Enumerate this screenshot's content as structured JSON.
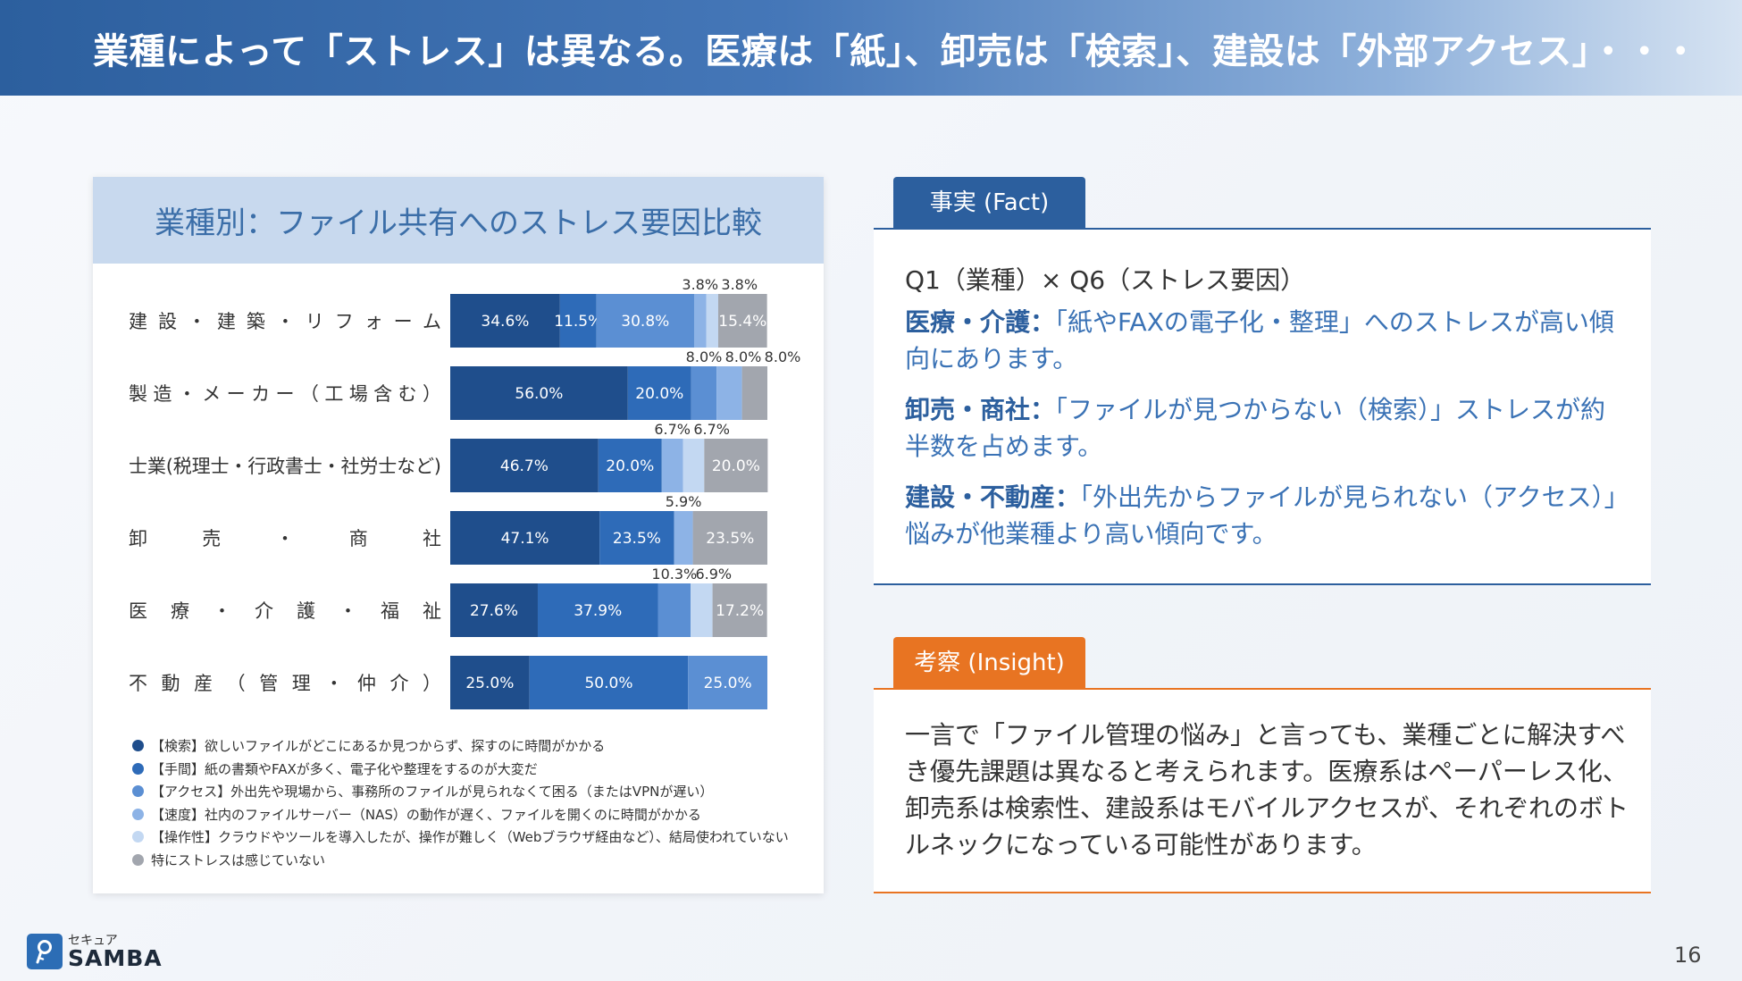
{
  "header": {
    "title": "業種によって「ストレス」は異なる。医療は「紙」、卸売は「検索」、建設は「外部アクセス」・・・"
  },
  "chart_card": {
    "title": "業種別：ファイル共有へのストレス要因比較"
  },
  "chart_data": {
    "type": "bar",
    "orientation": "horizontal",
    "stacked": true,
    "title": "業種別：ファイル共有へのストレス要因比較",
    "categories": [
      "建設・建築・リフォーム",
      "製造・メーカー（工場含む）",
      "士業(税理士・行政書士・社労士など)",
      "卸売・商社",
      "医療・介護・福祉",
      "不動産（管理・仲介）"
    ],
    "series": [
      {
        "name": "【検索】欲しいファイルがどこにあるか見つからず、探すのに時間がかかる",
        "color": "#1f4e8c",
        "values": [
          34.6,
          56.0,
          46.7,
          47.1,
          27.6,
          25.0
        ]
      },
      {
        "name": "【手間】紙の書類やFAXが多く、電子化や整理をするのが大変だ",
        "color": "#2e6bb8",
        "values": [
          11.5,
          20.0,
          20.0,
          23.5,
          37.9,
          50.0
        ]
      },
      {
        "name": "【アクセス】外出先や現場から、事務所のファイルが見られなくて困る（またはVPNが遅い）",
        "color": "#5b8fd3",
        "values": [
          30.8,
          8.0,
          0,
          0,
          10.3,
          25.0
        ]
      },
      {
        "name": "【速度】社内のファイルサーバー（NAS）の動作が遅く、ファイルを開くのに時間がかかる",
        "color": "#8db3e6",
        "values": [
          3.8,
          8.0,
          6.7,
          5.9,
          0,
          0
        ]
      },
      {
        "name": "【操作性】クラウドやツールを導入したが、操作が難しく（Webブラウザ経由など）、結局使われていない",
        "color": "#c3d8f2",
        "values": [
          3.8,
          0,
          6.7,
          0,
          6.9,
          0
        ]
      },
      {
        "name": "特にストレスは感じていない",
        "color": "#a2a6ae",
        "values": [
          15.4,
          8.0,
          20.0,
          23.5,
          17.2,
          0
        ]
      }
    ],
    "value_labels": [
      [
        "34.6%",
        "11.5%",
        "30.8%",
        "3.8%",
        "3.8%",
        "15.4%"
      ],
      [
        "56.0%",
        "20.0%",
        "8.0%",
        "8.0%",
        "",
        "8.0%"
      ],
      [
        "46.7%",
        "20.0%",
        "",
        "6.7%",
        "6.7%",
        "20.0%"
      ],
      [
        "47.1%",
        "23.5%",
        "",
        "5.9%",
        "",
        "23.5%"
      ],
      [
        "27.6%",
        "37.9%",
        "10.3%",
        "",
        "6.9%",
        "17.2%"
      ],
      [
        "25.0%",
        "50.0%",
        "25.0%",
        "",
        "",
        ""
      ]
    ],
    "xlim": [
      0,
      100
    ],
    "legend_position": "bottom"
  },
  "fact": {
    "tab_label": "事実 (Fact)",
    "question": "Q1（業種）× Q6（ストレス要因）",
    "items": [
      {
        "label": "医療・介護：",
        "text": "「紙やFAXの電子化・整理」へのストレスが高い傾向にあります。"
      },
      {
        "label": "卸売・商社：",
        "text": "「ファイルが見つからない（検索）」ストレスが約半数を占めます。"
      },
      {
        "label": "建設・不動産：",
        "text": "「外出先からファイルが見られない（アクセス）」悩みが他業種より高い傾向です。"
      }
    ]
  },
  "insight": {
    "tab_label": "考察 (Insight)",
    "text": "一言で「ファイル管理の悩み」と言っても、業種ごとに解決すべき優先課題は異なると考えられます。医療系はペーパーレス化、卸売系は検索性、建設系はモバイルアクセスが、それぞれのボトルネックになっている可能性があります。"
  },
  "logo": {
    "small": "セキュア",
    "big": "SAMBA"
  },
  "page_number": "16"
}
